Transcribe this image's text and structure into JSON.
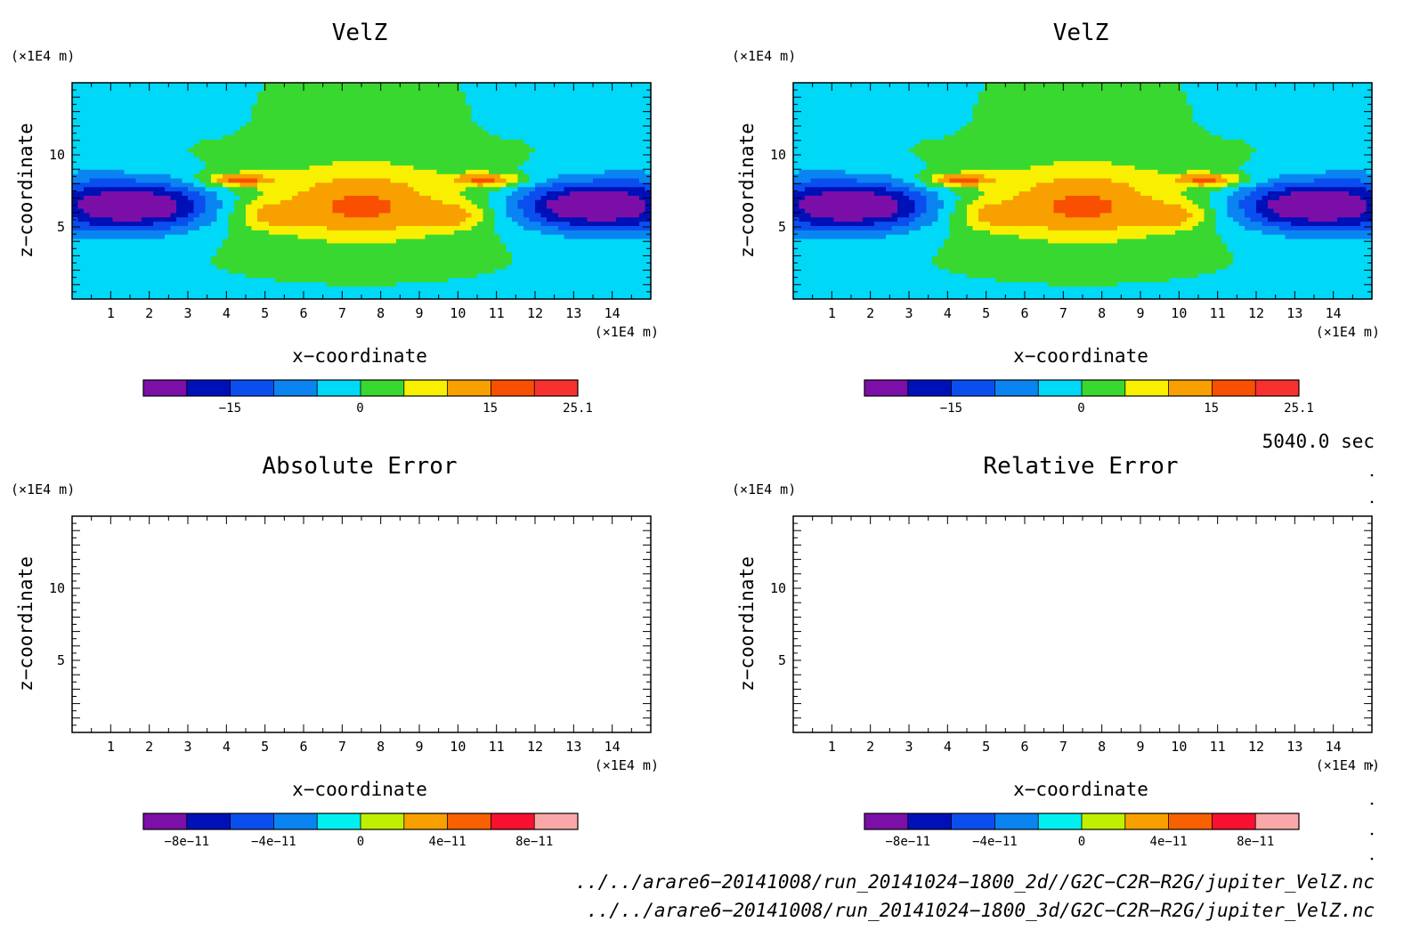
{
  "chart_data": [
    {
      "type": "heatmap",
      "title": "VelZ",
      "xlabel": "x−coordinate",
      "ylabel": "z−coordinate",
      "x_unit": "(×1E4 m)",
      "y_unit": "(×1E4 m)",
      "xlim": [
        0,
        15
      ],
      "ylim": [
        0,
        15
      ],
      "x_ticks": [
        "1",
        "2",
        "3",
        "4",
        "5",
        "6",
        "7",
        "8",
        "9",
        "10",
        "11",
        "12",
        "13",
        "14"
      ],
      "y_ticks": [
        "5",
        "10"
      ],
      "colorbar": {
        "ticks": [
          "−15",
          "0",
          "15",
          "25.1"
        ],
        "tick_values": [
          -15,
          0,
          15,
          25.1
        ],
        "range": [
          -25,
          25.1
        ],
        "colors": [
          "#7b0fa8",
          "#0010b8",
          "#0a4ef0",
          "#0a84f0",
          "#00d8f8",
          "#38d830",
          "#f8f000",
          "#f8a000",
          "#f85000",
          "#f83030"
        ]
      },
      "contour_levels_filled": true
    },
    {
      "type": "heatmap",
      "title": "VelZ",
      "xlabel": "x−coordinate",
      "ylabel": "z−coordinate",
      "x_unit": "(×1E4 m)",
      "y_unit": "(×1E4 m)",
      "xlim": [
        0,
        15
      ],
      "ylim": [
        0,
        15
      ],
      "x_ticks": [
        "1",
        "2",
        "3",
        "4",
        "5",
        "6",
        "7",
        "8",
        "9",
        "10",
        "11",
        "12",
        "13",
        "14"
      ],
      "y_ticks": [
        "5",
        "10"
      ],
      "colorbar": {
        "ticks": [
          "−15",
          "0",
          "15",
          "25.1"
        ],
        "tick_values": [
          -15,
          0,
          15,
          25.1
        ],
        "range": [
          -25,
          25.1
        ],
        "colors": [
          "#7b0fa8",
          "#0010b8",
          "#0a4ef0",
          "#0a84f0",
          "#00d8f8",
          "#38d830",
          "#f8f000",
          "#f8a000",
          "#f85000",
          "#f83030"
        ]
      },
      "contour_levels_filled": true
    },
    {
      "type": "heatmap",
      "title": "Absolute Error",
      "xlabel": "x−coordinate",
      "ylabel": "z−coordinate",
      "x_unit": "(×1E4 m)",
      "y_unit": "(×1E4 m)",
      "xlim": [
        0,
        15
      ],
      "ylim": [
        0,
        15
      ],
      "x_ticks": [
        "1",
        "2",
        "3",
        "4",
        "5",
        "6",
        "7",
        "8",
        "9",
        "10",
        "11",
        "12",
        "13",
        "14"
      ],
      "y_ticks": [
        "5",
        "10"
      ],
      "colorbar": {
        "ticks": [
          "−8e−11",
          "−4e−11",
          "0",
          "4e−11",
          "8e−11"
        ],
        "tick_values": [
          -8e-11,
          -4e-11,
          0,
          4e-11,
          8e-11
        ],
        "range": [
          -1e-10,
          1e-10
        ],
        "colors": [
          "#7b0fa8",
          "#0010b8",
          "#0a4ef0",
          "#0a84f0",
          "#00f0f0",
          "#c0f000",
          "#f8a000",
          "#f86000",
          "#f81030",
          "#f8a8a8"
        ]
      },
      "field_empty": true
    },
    {
      "type": "heatmap",
      "title": "Relative Error",
      "xlabel": "x−coordinate",
      "ylabel": "z−coordinate",
      "x_unit": "(×1E4 m)",
      "y_unit": "(×1E4 m)",
      "xlim": [
        0,
        15
      ],
      "ylim": [
        0,
        15
      ],
      "x_ticks": [
        "1",
        "2",
        "3",
        "4",
        "5",
        "6",
        "7",
        "8",
        "9",
        "10",
        "11",
        "12",
        "13",
        "14"
      ],
      "y_ticks": [
        "5",
        "10"
      ],
      "colorbar": {
        "ticks": [
          "−8e−11",
          "−4e−11",
          "0",
          "4e−11",
          "8e−11"
        ],
        "tick_values": [
          -8e-11,
          -4e-11,
          0,
          4e-11,
          8e-11
        ],
        "range": [
          -1e-10,
          1e-10
        ],
        "colors": [
          "#7b0fa8",
          "#0010b8",
          "#0a4ef0",
          "#0a84f0",
          "#00f0f0",
          "#c0f000",
          "#f8a000",
          "#f86000",
          "#f81030",
          "#f8a8a8"
        ]
      },
      "field_empty": true
    }
  ],
  "time_label": "5040.0 sec",
  "file_paths": [
    "../../arare6−20141008/run_20141024−1800_2d//G2C−C2R−R2G/jupiter_VelZ.nc",
    "../../arare6−20141008/run_20141024−1800_3d/G2C−C2R−R2G/jupiter_VelZ.nc"
  ]
}
